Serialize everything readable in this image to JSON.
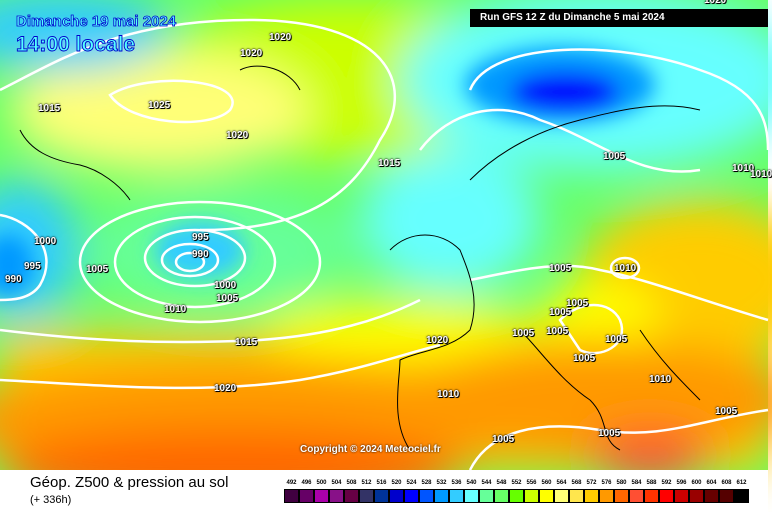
{
  "header": {
    "date": "Dimanche 19 mai 2024",
    "time": "14:00 locale",
    "run": "Run GFS 12 Z du Dimanche 5 mai 2024"
  },
  "copyright": "Copyright © 2024 Meteociel.fr",
  "footer": {
    "title": "Géop. Z500 & pression au sol",
    "subtitle": "(+ 336h)"
  },
  "legend": {
    "ticks": [
      "492",
      "496",
      "500",
      "504",
      "508",
      "512",
      "516",
      "520",
      "524",
      "528",
      "532",
      "536",
      "540",
      "544",
      "548",
      "552",
      "556",
      "560",
      "564",
      "568",
      "572",
      "576",
      "580",
      "584",
      "588",
      "592",
      "596",
      "600",
      "604",
      "608",
      "612"
    ],
    "colors": [
      "#400040",
      "#660066",
      "#aa00aa",
      "#881188",
      "#660044",
      "#333366",
      "#003399",
      "#0000cc",
      "#0000ff",
      "#0055ff",
      "#0099ff",
      "#33ccff",
      "#66ffff",
      "#66ff99",
      "#66ff66",
      "#66ff00",
      "#ccff00",
      "#ffff00",
      "#ffff77",
      "#ffe64d",
      "#ffcc00",
      "#ff9900",
      "#ff6600",
      "#ff4f33",
      "#ff3300",
      "#ff0000",
      "#cc0000",
      "#990000",
      "#660000",
      "#550000",
      "#000000"
    ]
  },
  "isobar_labels": [
    "1020",
    "1020",
    "1020",
    "1015",
    "1025",
    "1020",
    "1015",
    "1005",
    "1010",
    "1010",
    "995",
    "1000",
    "995",
    "990",
    "990",
    "1005",
    "1010",
    "1005",
    "1000",
    "1005",
    "1010",
    "1005",
    "1005",
    "1005",
    "1005",
    "1005",
    "1020",
    "1015",
    "1005",
    "1010",
    "1020",
    "1010",
    "1005",
    "1005",
    "1005"
  ]
}
